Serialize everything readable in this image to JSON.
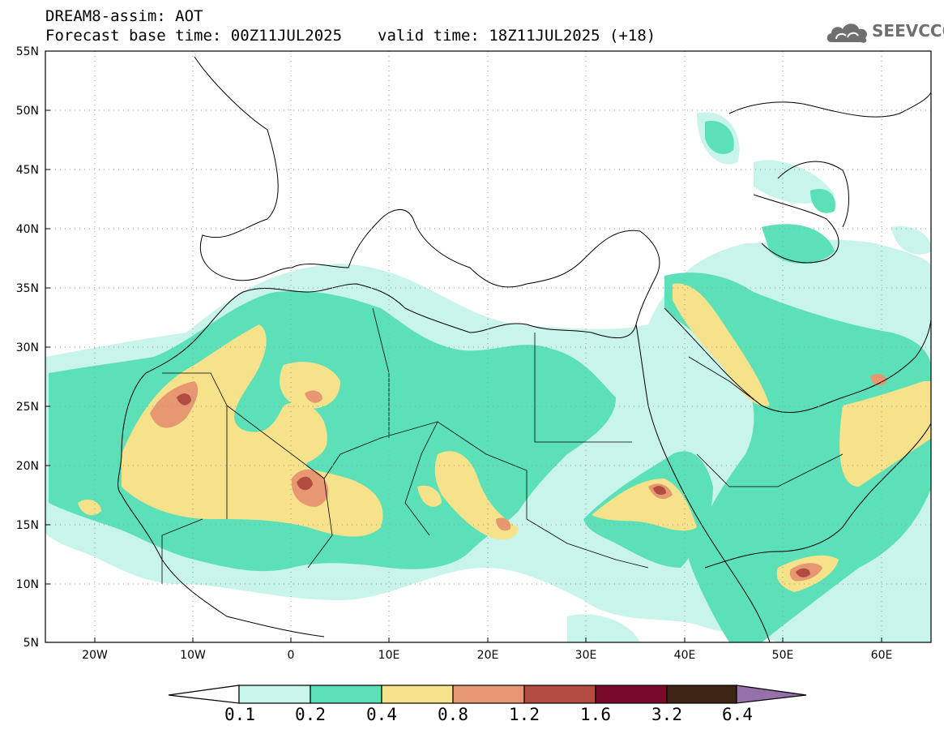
{
  "header": {
    "model_line": "DREAM8-assim: AOT",
    "base_time": "Forecast base time: 00Z11JUL2025",
    "valid_time": "valid time: 18Z11JUL2025 (+18)"
  },
  "logo": {
    "text": "SEEVCCC",
    "icon": "cloud-icon"
  },
  "map": {
    "lon_range": [
      -25,
      65
    ],
    "lat_range": [
      5,
      55
    ],
    "lat_labels": [
      "55N",
      "50N",
      "45N",
      "40N",
      "35N",
      "30N",
      "25N",
      "20N",
      "15N",
      "10N",
      "5N"
    ],
    "lon_labels": [
      "20W",
      "10W",
      "0",
      "10E",
      "20E",
      "30E",
      "40E",
      "50E",
      "60E"
    ]
  },
  "colorbar": {
    "labels": [
      "0.1",
      "0.2",
      "0.4",
      "0.8",
      "1.2",
      "1.6",
      "3.2",
      "6.4"
    ],
    "colors": [
      "#c8f4ec",
      "#5ce0b8",
      "#f5e28a",
      "#e89870",
      "#b24c42",
      "#7a0a2a",
      "#3e2412",
      "#9670a8"
    ]
  }
}
